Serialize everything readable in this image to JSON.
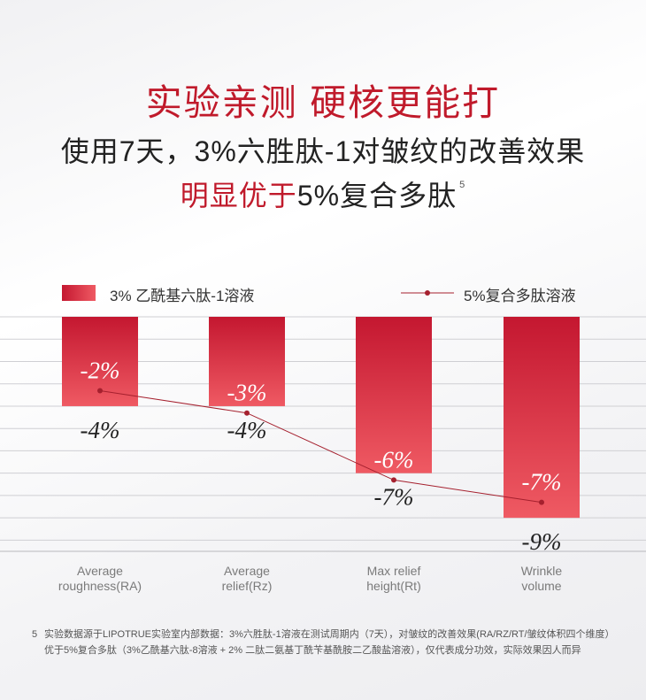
{
  "header": {
    "title": "实验亲测 硬核更能打",
    "subtitle_line1": "使用7天，3%六胜肽-1对皱纹的改善效果",
    "subtitle_line2_red": "明显优于",
    "subtitle_line2_rest": "5%复合多肽",
    "subtitle_sup": "5"
  },
  "legend": {
    "bar_label": "3% 乙酰基六肽-1溶液",
    "line_label": "5%复合多肽溶液"
  },
  "colors": {
    "accent": "#c01a2b",
    "bar_top": "#c41730",
    "bar_bottom": "#ef5a63",
    "line": "#a5202e"
  },
  "chart_data": {
    "type": "bar",
    "categories": [
      "Average\nroughness(RA)",
      "Average\nrelief(Rz)",
      "Max relief\nheight(Rt)",
      "Wrinkle\nvolume"
    ],
    "series": [
      {
        "name": "3% 乙酰基六肽-1溶液",
        "type": "bar",
        "values": [
          -4,
          -4,
          -7,
          -9
        ],
        "labels": [
          "-4%",
          "-4%",
          "-7%",
          "-9%"
        ]
      },
      {
        "name": "5%复合多肽溶液",
        "type": "line",
        "values": [
          -2,
          -3,
          -6,
          -7
        ],
        "labels": [
          "-2%",
          "-3%",
          "-6%",
          "-7%"
        ]
      }
    ],
    "ylim": [
      -10.5,
      0
    ],
    "grid": true,
    "legend_position": "top"
  },
  "footnote": {
    "num": "5",
    "line1": "实验数据源于LIPOTRUE实验室内部数据：3%六胜肽-1溶液在测试周期内（7天），对皱纹的改善效果(RA/RZ/RT/皱纹体积四个维度）",
    "line2": "优于5%复合多肽（3%乙酰基六肽-8溶液 + 2% 二肽二氨基丁酰苄基酰胺二乙酸盐溶液），仅代表成分功效，实际效果因人而异"
  }
}
